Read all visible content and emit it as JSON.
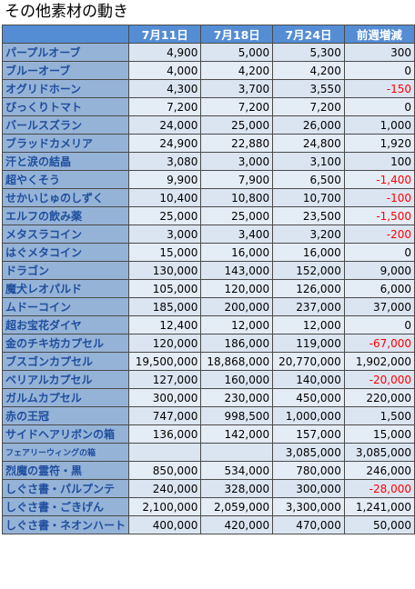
{
  "title": "その他素材の動き",
  "headers": [
    "",
    "7月11日",
    "7月18日",
    "7月24日",
    "前週増減"
  ],
  "rows": [
    {
      "name": "パープルオーブ",
      "d1": "4,900",
      "d2": "5,000",
      "d3": "5,300",
      "diff": "300",
      "neg": false
    },
    {
      "name": "ブルーオーブ",
      "d1": "4,000",
      "d2": "4,200",
      "d3": "4,200",
      "diff": "0",
      "neg": false
    },
    {
      "name": "オグリドホーン",
      "d1": "4,300",
      "d2": "3,700",
      "d3": "3,550",
      "diff": "-150",
      "neg": true
    },
    {
      "name": "びっくりトマト",
      "d1": "7,200",
      "d2": "7,200",
      "d3": "7,200",
      "diff": "0",
      "neg": false
    },
    {
      "name": "バールスズラン",
      "d1": "24,000",
      "d2": "25,000",
      "d3": "26,000",
      "diff": "1,000",
      "neg": false
    },
    {
      "name": "ブラッドカメリア",
      "d1": "24,900",
      "d2": "22,880",
      "d3": "24,800",
      "diff": "1,920",
      "neg": false
    },
    {
      "name": "汗と涙の結晶",
      "d1": "3,080",
      "d2": "3,000",
      "d3": "3,100",
      "diff": "100",
      "neg": false
    },
    {
      "name": "超やくそう",
      "d1": "9,900",
      "d2": "7,900",
      "d3": "6,500",
      "diff": "-1,400",
      "neg": true
    },
    {
      "name": "せかいじゅのしずく",
      "d1": "10,400",
      "d2": "10,800",
      "d3": "10,700",
      "diff": "-100",
      "neg": true
    },
    {
      "name": "エルフの飲み薬",
      "d1": "25,000",
      "d2": "25,000",
      "d3": "23,500",
      "diff": "-1,500",
      "neg": true
    },
    {
      "name": "メタスラコイン",
      "d1": "3,000",
      "d2": "3,400",
      "d3": "3,200",
      "diff": "-200",
      "neg": true
    },
    {
      "name": "はぐメタコイン",
      "d1": "15,000",
      "d2": "16,000",
      "d3": "16,000",
      "diff": "0",
      "neg": false
    },
    {
      "name": "ドラゴン",
      "d1": "130,000",
      "d2": "143,000",
      "d3": "152,000",
      "diff": "9,000",
      "neg": false
    },
    {
      "name": "魔犬レオパルド",
      "d1": "105,000",
      "d2": "120,000",
      "d3": "126,000",
      "diff": "6,000",
      "neg": false
    },
    {
      "name": "ムドーコイン",
      "d1": "185,000",
      "d2": "200,000",
      "d3": "237,000",
      "diff": "37,000",
      "neg": false
    },
    {
      "name": "超お宝花ダイヤ",
      "d1": "12,400",
      "d2": "12,000",
      "d3": "12,000",
      "diff": "0",
      "neg": false
    },
    {
      "name": "金のチキ坊カプセル",
      "d1": "120,000",
      "d2": "186,000",
      "d3": "119,000",
      "diff": "-67,000",
      "neg": true
    },
    {
      "name": "ブスゴンカプセル",
      "d1": "19,500,000",
      "d2": "18,868,000",
      "d3": "20,770,000",
      "diff": "1,902,000",
      "neg": false
    },
    {
      "name": "ベリアルカプセル",
      "d1": "127,000",
      "d2": "160,000",
      "d3": "140,000",
      "diff": "-20,000",
      "neg": true
    },
    {
      "name": "ガルムカプセル",
      "d1": "300,000",
      "d2": "230,000",
      "d3": "450,000",
      "diff": "220,000",
      "neg": false
    },
    {
      "name": "赤の王冠",
      "d1": "747,000",
      "d2": "998,500",
      "d3": "1,000,000",
      "diff": "1,500",
      "neg": false
    },
    {
      "name": "サイドヘアリボンの箱",
      "d1": "136,000",
      "d2": "142,000",
      "d3": "157,000",
      "diff": "15,000",
      "neg": false
    },
    {
      "name": "フェアリーウィングの箱",
      "d1": "",
      "d2": "",
      "d3": "3,085,000",
      "diff": "3,085,000",
      "neg": false,
      "small": true
    },
    {
      "name": "烈魔の霊符・黒",
      "d1": "850,000",
      "d2": "534,000",
      "d3": "780,000",
      "diff": "246,000",
      "neg": false
    },
    {
      "name": "しぐさ書・パルプンテ",
      "d1": "240,000",
      "d2": "328,000",
      "d3": "300,000",
      "diff": "-28,000",
      "neg": true
    },
    {
      "name": "しぐさ書・ごきげん",
      "d1": "2,100,000",
      "d2": "2,059,000",
      "d3": "3,300,000",
      "diff": "1,241,000",
      "neg": false
    },
    {
      "name": "しぐさ書・ネオンハート",
      "d1": "400,000",
      "d2": "420,000",
      "d3": "470,000",
      "diff": "50,000",
      "neg": false
    }
  ]
}
